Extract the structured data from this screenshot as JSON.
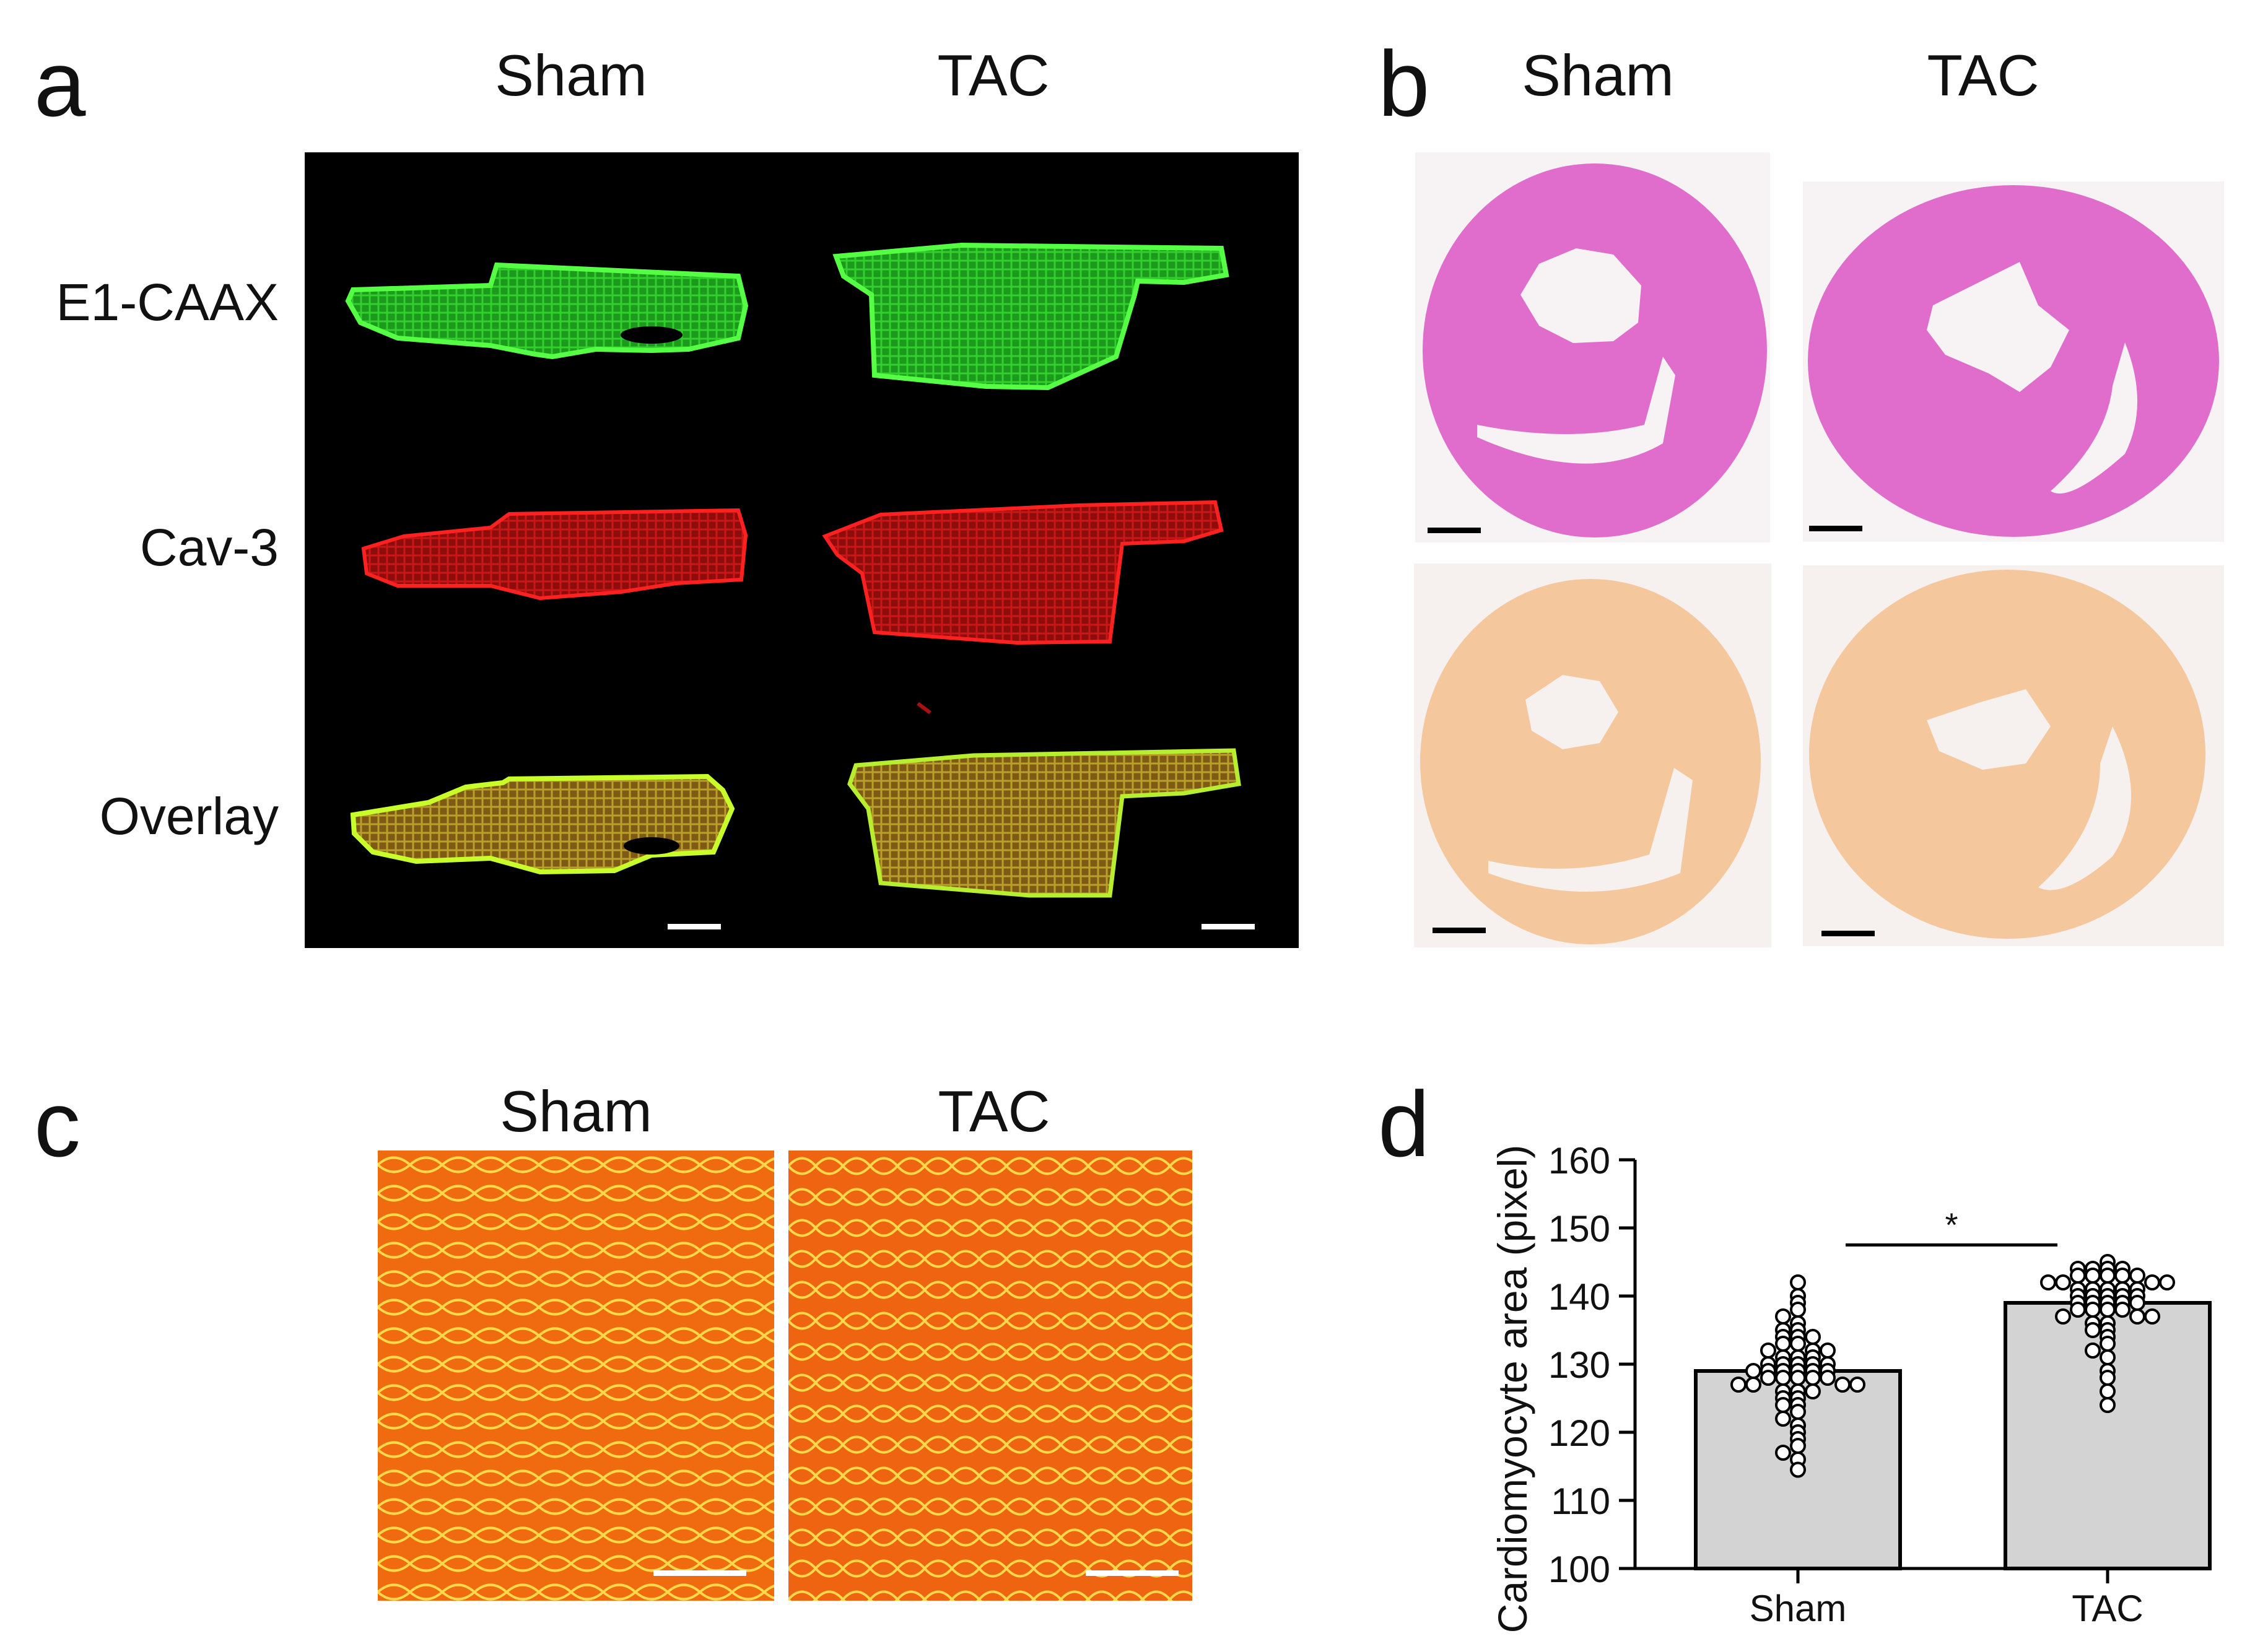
{
  "panels": {
    "a": {
      "letter": "a",
      "columns": [
        "Sham",
        "TAC"
      ],
      "rows": [
        "E1-CAAX",
        "Cav-3",
        "Overlay"
      ]
    },
    "b": {
      "letter": "b",
      "columns": [
        "Sham",
        "TAC"
      ]
    },
    "c": {
      "letter": "c",
      "columns": [
        "Sham",
        "TAC"
      ]
    },
    "d": {
      "letter": "d"
    }
  },
  "colors": {
    "green_channel": "#2fd12a",
    "red_channel": "#d41515",
    "he_stain": "#e070c8",
    "sirius": "#f6c89a",
    "wga": "#f06a10",
    "bar_fill": "#d3d3d3"
  },
  "chart_data": {
    "type": "bar",
    "categories": [
      "Sham",
      "TAC"
    ],
    "values": [
      129,
      139
    ],
    "ylabel": "Cardiomyocyte area (pixel)",
    "ylim": [
      100,
      160
    ],
    "yticks": [
      100,
      110,
      120,
      130,
      140,
      150,
      160
    ],
    "significance": "*",
    "points": {
      "Sham": [
        142,
        140,
        139,
        138,
        137,
        136,
        135,
        135,
        134,
        134,
        134,
        133,
        133,
        132,
        132,
        132,
        131,
        131,
        131,
        130,
        130,
        130,
        130,
        130,
        129,
        129,
        129,
        129,
        129,
        129,
        128,
        128,
        128,
        128,
        128,
        127,
        127,
        127,
        127,
        126,
        126,
        126,
        125,
        125,
        124,
        124,
        123,
        122,
        121,
        120,
        119,
        118,
        117,
        116,
        114.5
      ],
      "TAC": [
        145,
        144,
        144,
        144,
        144,
        143,
        143,
        143,
        143,
        143,
        142,
        142,
        142,
        142,
        141,
        141,
        141,
        141,
        141,
        140,
        140,
        140,
        140,
        140,
        139,
        139,
        139,
        139,
        139,
        138,
        138,
        138,
        138,
        137,
        137,
        137,
        136,
        136,
        135,
        135,
        134,
        133,
        132,
        131,
        129,
        128,
        126,
        124
      ]
    }
  }
}
